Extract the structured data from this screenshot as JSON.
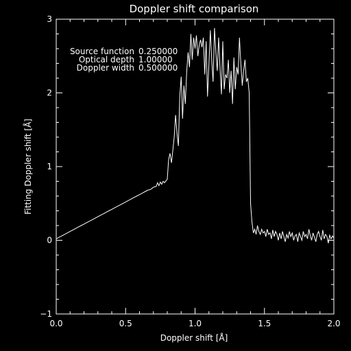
{
  "chart_data": {
    "type": "line",
    "title": "Doppler shift comparison",
    "xlabel": "Doppler shift [Å]",
    "ylabel": "Fitting Doppler shift [Å]",
    "xlim": [
      0.0,
      2.0
    ],
    "ylim": [
      -1,
      3
    ],
    "xticks": [
      0.0,
      0.5,
      1.0,
      1.5,
      2.0
    ],
    "xtick_labels": [
      "0.0",
      "0.5",
      "1.0",
      "1.5",
      "2.0"
    ],
    "yticks": [
      -1,
      0,
      1,
      2,
      3
    ],
    "ytick_labels": [
      "−1",
      "0",
      "1",
      "2",
      "3"
    ],
    "grid": false,
    "line_color": "#ffffff",
    "background_color": "#000000",
    "annotations": [
      {
        "label": "Source function",
        "value": "0.250000"
      },
      {
        "label": "Optical depth",
        "value": "1.00000"
      },
      {
        "label": "Doppler width",
        "value": "0.500000"
      }
    ],
    "x": [
      0.0,
      0.02,
      0.04,
      0.06,
      0.08,
      0.1,
      0.12,
      0.14,
      0.16,
      0.18,
      0.2,
      0.22,
      0.24,
      0.26,
      0.28,
      0.3,
      0.32,
      0.34,
      0.36,
      0.38,
      0.4,
      0.42,
      0.44,
      0.46,
      0.48,
      0.5,
      0.52,
      0.54,
      0.56,
      0.58,
      0.6,
      0.62,
      0.64,
      0.66,
      0.68,
      0.7,
      0.72,
      0.73,
      0.74,
      0.75,
      0.76,
      0.77,
      0.78,
      0.8,
      0.81,
      0.82,
      0.83,
      0.84,
      0.85,
      0.86,
      0.87,
      0.88,
      0.89,
      0.9,
      0.91,
      0.92,
      0.93,
      0.94,
      0.95,
      0.96,
      0.97,
      0.98,
      0.99,
      1.0,
      1.01,
      1.02,
      1.03,
      1.04,
      1.05,
      1.06,
      1.07,
      1.08,
      1.09,
      1.1,
      1.11,
      1.12,
      1.13,
      1.14,
      1.15,
      1.16,
      1.17,
      1.18,
      1.19,
      1.2,
      1.21,
      1.22,
      1.23,
      1.24,
      1.25,
      1.26,
      1.27,
      1.28,
      1.29,
      1.3,
      1.31,
      1.32,
      1.33,
      1.34,
      1.35,
      1.36,
      1.37,
      1.38,
      1.39,
      1.4,
      1.41,
      1.42,
      1.43,
      1.44,
      1.45,
      1.46,
      1.47,
      1.48,
      1.49,
      1.5,
      1.51,
      1.52,
      1.53,
      1.54,
      1.55,
      1.56,
      1.57,
      1.58,
      1.59,
      1.6,
      1.61,
      1.62,
      1.63,
      1.64,
      1.65,
      1.66,
      1.67,
      1.68,
      1.69,
      1.7,
      1.71,
      1.72,
      1.73,
      1.74,
      1.75,
      1.76,
      1.77,
      1.78,
      1.79,
      1.8,
      1.81,
      1.82,
      1.83,
      1.84,
      1.85,
      1.86,
      1.87,
      1.88,
      1.89,
      1.9,
      1.91,
      1.92,
      1.93,
      1.94,
      1.95,
      1.96,
      1.97,
      1.98,
      1.99,
      2.0
    ],
    "y": [
      0.02,
      0.04,
      0.06,
      0.08,
      0.1,
      0.12,
      0.14,
      0.16,
      0.18,
      0.2,
      0.22,
      0.24,
      0.26,
      0.28,
      0.3,
      0.32,
      0.34,
      0.36,
      0.38,
      0.4,
      0.42,
      0.44,
      0.46,
      0.48,
      0.5,
      0.52,
      0.54,
      0.56,
      0.58,
      0.6,
      0.62,
      0.64,
      0.66,
      0.68,
      0.69,
      0.72,
      0.73,
      0.78,
      0.74,
      0.79,
      0.76,
      0.8,
      0.78,
      0.83,
      1.1,
      1.18,
      1.05,
      1.22,
      1.4,
      1.7,
      1.45,
      1.28,
      1.95,
      2.22,
      1.65,
      2.1,
      1.85,
      2.3,
      2.55,
      2.35,
      2.8,
      2.45,
      2.75,
      2.6,
      2.78,
      2.5,
      2.65,
      2.72,
      2.62,
      2.75,
      2.25,
      2.7,
      1.95,
      2.4,
      2.85,
      2.45,
      2.15,
      2.88,
      2.55,
      2.3,
      2.75,
      2.35,
      1.98,
      2.7,
      2.05,
      2.25,
      2.2,
      2.45,
      2.0,
      2.3,
      1.85,
      2.48,
      2.05,
      2.35,
      2.25,
      2.75,
      2.4,
      2.1,
      2.3,
      2.45,
      2.15,
      2.2,
      2.0,
      0.5,
      0.25,
      0.1,
      0.15,
      0.08,
      0.2,
      0.12,
      0.08,
      0.15,
      0.1,
      0.12,
      0.05,
      0.15,
      0.08,
      0.1,
      0.02,
      0.14,
      0.05,
      0.12,
      0.08,
      0.0,
      0.1,
      0.02,
      0.12,
      0.05,
      -0.02,
      0.08,
      0.03,
      0.12,
      0.05,
      0.1,
      0.0,
      0.06,
      0.08,
      -0.02,
      0.1,
      0.05,
      0.0,
      0.12,
      0.05,
      0.08,
      0.02,
      0.15,
      0.06,
      0.0,
      0.1,
      0.04,
      -0.02,
      0.08,
      0.12,
      0.05,
      0.0,
      0.14,
      0.02,
      0.08,
      0.05,
      -0.04,
      0.07,
      0.02,
      0.06,
      0.03
    ]
  }
}
